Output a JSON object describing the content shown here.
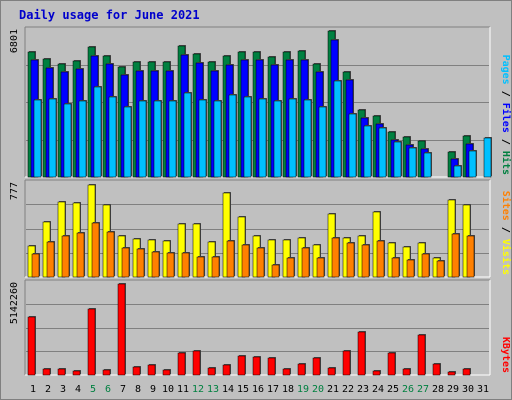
{
  "chart_data": {
    "type": "bar",
    "title": "Daily usage for June 2021",
    "categories": [
      "1",
      "2",
      "3",
      "4",
      "5",
      "6",
      "7",
      "8",
      "9",
      "10",
      "11",
      "12",
      "13",
      "14",
      "15",
      "16",
      "17",
      "18",
      "19",
      "20",
      "21",
      "22",
      "23",
      "24",
      "25",
      "26",
      "27",
      "28",
      "29",
      "30",
      "31"
    ],
    "weekend_days": [
      "5",
      "6",
      "12",
      "13",
      "19",
      "20",
      "26",
      "27"
    ],
    "colors": {
      "hits": "#008040",
      "files": "#0000ff",
      "pages": "#00c0ff",
      "visits": "#ffff00",
      "sites": "#ff8000",
      "kbytes": "#ff0000",
      "weekday_label": "#000000",
      "weekend_label": "#008040",
      "title": "#0000cc"
    },
    "panels": [
      {
        "id": "hits_files_pages",
        "ymax_label": "6801",
        "ymax": 6801,
        "legend": [
          {
            "label": "Hits",
            "color": "#008040"
          },
          {
            "label": "Files",
            "color": "#0000ff"
          },
          {
            "label": "Pages",
            "color": "#00c0ff"
          }
        ],
        "series": [
          {
            "name": "Hits",
            "values": [
              5840,
              5480,
              5280,
              5390,
              6040,
              5650,
              5120,
              5360,
              5360,
              5360,
              6090,
              5720,
              5360,
              5630,
              5840,
              5840,
              5590,
              5830,
              5850,
              5280,
              6780,
              4890,
              3130,
              2850,
              2100,
              1880,
              1670,
              null,
              1180,
              1910,
              null
            ]
          },
          {
            "name": "Files",
            "values": [
              5440,
              5070,
              4890,
              5010,
              5640,
              5250,
              4730,
              4960,
              4960,
              4960,
              5690,
              5330,
              4960,
              5240,
              5440,
              5440,
              5200,
              5440,
              5450,
              4890,
              6360,
              4500,
              2760,
              2480,
              1740,
              1500,
              1300,
              null,
              820,
              1540,
              null
            ]
          },
          {
            "name": "Pages",
            "values": [
              3600,
              3640,
              3390,
              3520,
              4170,
              3720,
              3250,
              3520,
              3520,
              3520,
              3930,
              3610,
              3520,
              3830,
              3740,
              3640,
              3520,
              3640,
              3580,
              3250,
              4450,
              2950,
              2390,
              2270,
              1620,
              1360,
              1100,
              null,
              490,
              1190,
              1800
            ]
          }
        ]
      },
      {
        "id": "visits_sites",
        "ymax_label": "777",
        "ymax": 777,
        "legend": [
          {
            "label": "Visits",
            "color": "#ffff00"
          },
          {
            "label": "Sites",
            "color": "#ff8000"
          }
        ],
        "series": [
          {
            "name": "Visits",
            "values": [
              260,
              460,
              630,
              620,
              770,
              600,
              340,
              320,
              310,
              300,
              440,
              440,
              290,
              700,
              500,
              340,
              310,
              310,
              330,
              270,
              530,
              330,
              340,
              540,
              280,
              250,
              280,
              160,
              640,
              600,
              null
            ]
          },
          {
            "name": "Sites",
            "values": [
              190,
              290,
              340,
              370,
              450,
              380,
              240,
              230,
              210,
              200,
              200,
              170,
              170,
              300,
              270,
              240,
              100,
              160,
              240,
              160,
              330,
              280,
              270,
              300,
              160,
              140,
              190,
              130,
              360,
              340,
              null
            ]
          }
        ]
      },
      {
        "id": "kbytes",
        "ymax_label": "5142260",
        "ymax": 5142260,
        "legend": [
          {
            "label": "KBytes",
            "color": "#ff0000"
          }
        ],
        "series": [
          {
            "name": "KBytes",
            "values": [
              3300000,
              330000,
              330000,
              250000,
              3720000,
              290000,
              5140000,
              460000,
              590000,
              290000,
              1220000,
              1380000,
              380000,
              590000,
              1070000,
              1010000,
              970000,
              330000,
              630000,
              970000,
              380000,
              1370000,
              2410000,
              210000,
              1240000,
              330000,
              2250000,
              630000,
              170000,
              330000,
              null
            ]
          }
        ]
      }
    ]
  }
}
